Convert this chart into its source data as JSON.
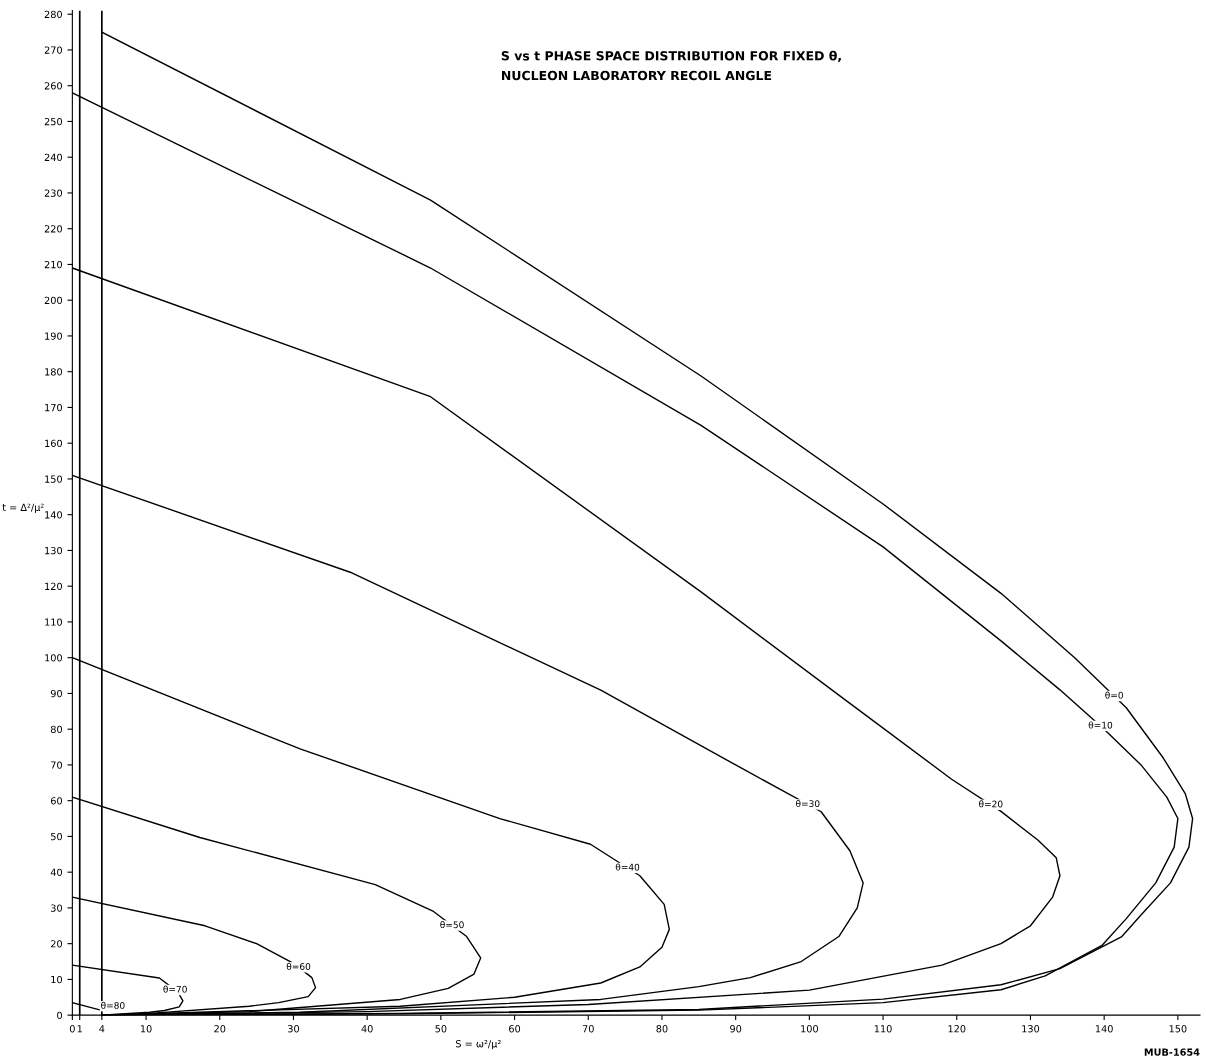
{
  "chart_data": {
    "type": "line",
    "title": "S vs t PHASE SPACE DISTRIBUTION FOR FIXED θ,\nNUCLEON LABORATORY RECOIL ANGLE",
    "xlabel": "S = ω²/μ²",
    "ylabel": "t = Δ²/μ²",
    "xlim": [
      0,
      153
    ],
    "ylim": [
      0,
      281
    ],
    "xticks": [
      0,
      1,
      4,
      10,
      20,
      30,
      40,
      50,
      60,
      70,
      80,
      90,
      100,
      110,
      120,
      130,
      140,
      150
    ],
    "yticks": [
      0,
      10,
      20,
      30,
      40,
      50,
      60,
      70,
      80,
      90,
      100,
      110,
      120,
      130,
      140,
      150,
      160,
      170,
      180,
      190,
      200,
      210,
      220,
      230,
      240,
      250,
      260,
      270,
      280
    ],
    "grid": false,
    "legend": false,
    "marker": "none",
    "line_style": "solid",
    "ref_lines": [
      {
        "axis": "x",
        "value": 1,
        "label": null,
        "color": "#000000"
      },
      {
        "axis": "x",
        "value": 4,
        "label": null,
        "color": "#000000"
      }
    ],
    "series": [
      {
        "name": "θ=0",
        "color": "#000000",
        "x": [
          4,
          48.6,
          85.3,
          110,
          126,
          136,
          143,
          148,
          151,
          152,
          151.5,
          149,
          145,
          142.4,
          134,
          126,
          110,
          85,
          44.5,
          4
        ],
        "values": [
          275,
          228,
          178.8,
          143,
          118,
          100,
          86,
          72,
          62,
          55,
          47,
          37,
          28,
          22,
          13,
          8.5,
          4.5,
          1.6,
          0.5,
          0
        ]
      },
      {
        "name": "θ=10",
        "color": "#000000",
        "x": [
          0,
          48.6,
          85.3,
          110,
          126,
          134,
          140,
          145,
          148.5,
          150,
          149.5,
          147,
          143,
          139.7,
          132,
          126,
          110,
          85,
          44.5,
          4
        ],
        "values": [
          258,
          209,
          165,
          131,
          104.7,
          91,
          80,
          70,
          61,
          55,
          47,
          37,
          27,
          19.5,
          11,
          7.1,
          3.5,
          1.4,
          0.4,
          0
        ]
      },
      {
        "name": "θ=20",
        "color": "#000000",
        "x": [
          0,
          48.6,
          85.3,
          105,
          119.3,
          126,
          131,
          133.5,
          134,
          133,
          130,
          126,
          118,
          100,
          70,
          40,
          4
        ],
        "values": [
          209,
          173,
          118.4,
          88,
          66,
          57,
          49,
          44,
          39,
          33,
          25,
          20,
          14,
          7,
          3,
          1,
          0
        ]
      },
      {
        "name": "θ=30",
        "color": "#000000",
        "x": [
          0,
          37.7,
          71.7,
          90,
          101.6,
          105.5,
          107.3,
          106.5,
          104,
          98.9,
          92,
          85,
          71.7,
          30.9,
          4
        ],
        "values": [
          151,
          123.9,
          90.9,
          70,
          56.9,
          46,
          37,
          30,
          22,
          15,
          10.5,
          8,
          4.4,
          0.8,
          0
        ]
      },
      {
        "name": "θ=40",
        "color": "#000000",
        "x": [
          0,
          30.9,
          58,
          70.3,
          77,
          80.3,
          81,
          80,
          77,
          71.7,
          60,
          44.5,
          4
        ],
        "values": [
          100,
          74.5,
          55,
          47.8,
          39,
          31,
          24,
          19,
          13.5,
          9,
          5,
          2.5,
          0
        ]
      },
      {
        "name": "θ=50",
        "color": "#000000",
        "x": [
          0,
          17.3,
          41.1,
          49,
          53.5,
          55.4,
          54.5,
          51,
          44.5,
          24,
          4
        ],
        "values": [
          61,
          49.7,
          36.5,
          29,
          22,
          16,
          11.5,
          7.5,
          4.4,
          1,
          0
        ]
      },
      {
        "name": "θ=60",
        "color": "#000000",
        "x": [
          0,
          18,
          25,
          30,
          32.5,
          33,
          32,
          28,
          24,
          10.5,
          4
        ],
        "values": [
          33,
          25,
          20,
          14.5,
          10.5,
          7.7,
          5.2,
          3.5,
          2.5,
          0.5,
          0
        ]
      },
      {
        "name": "θ=70",
        "color": "#000000",
        "x": [
          0,
          11.8,
          14.3,
          15,
          14.5,
          12.5,
          10.5,
          4
        ],
        "values": [
          14,
          10.4,
          6.5,
          4,
          2.3,
          1.3,
          0.8,
          0
        ]
      },
      {
        "name": "θ=80",
        "color": "#000000",
        "x": [
          0,
          4
        ],
        "values": [
          3.5,
          1.3
        ]
      }
    ],
    "annotations": [
      "MUB-1654"
    ]
  }
}
